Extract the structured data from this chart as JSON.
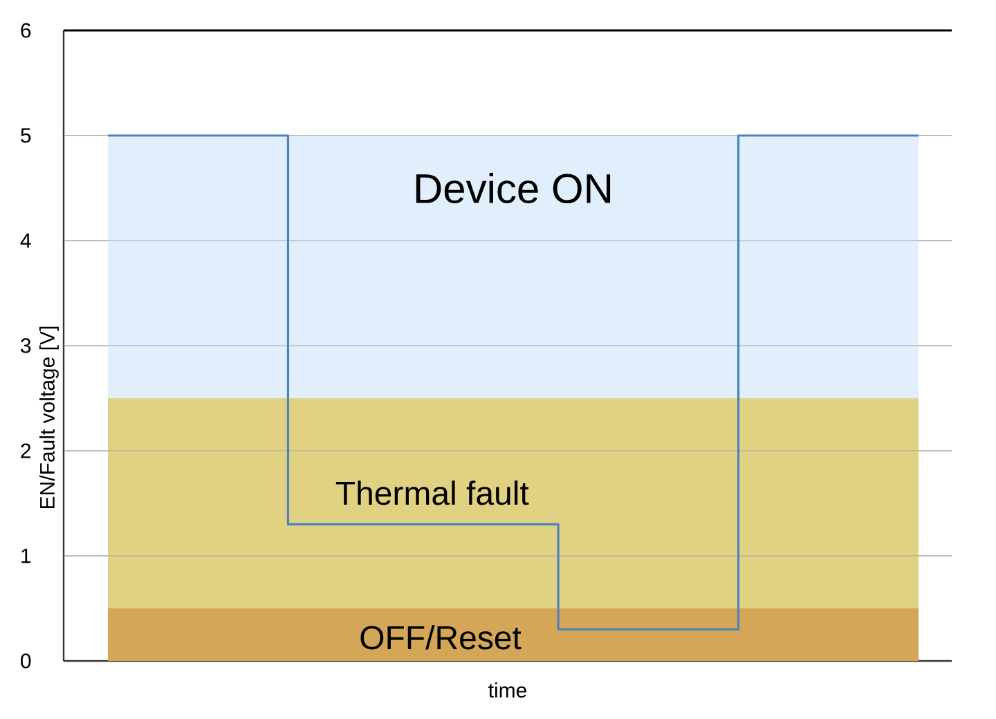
{
  "chart_data": {
    "type": "step",
    "ylabel": "EN/Fault voltage [V]",
    "xlabel": "time",
    "categories": [
      null,
      null,
      null,
      null,
      null,
      null,
      null,
      null,
      null,
      null
    ],
    "series": [
      {
        "color": "#4f81bd",
        "values": [
          5,
          5,
          1.3,
          1.3,
          1.3,
          0.3,
          0.3,
          5,
          5,
          5
        ]
      }
    ],
    "ylim": [
      0,
      6
    ],
    "yticks": [
      0,
      1,
      2,
      3,
      4,
      5,
      6
    ],
    "bands": [
      {
        "axis": "y",
        "from": 2.5,
        "to": 5,
        "label": "Device ON",
        "color": "#e1eefb"
      },
      {
        "axis": "y",
        "from": 0.5,
        "to": 2.5,
        "label": "Thermal fault",
        "color": "#e1d183"
      },
      {
        "axis": "y",
        "from": 0,
        "to": 0.5,
        "label": "OFF/Reset",
        "color": "#d4a657"
      }
    ],
    "grid": "y",
    "tick_labels": "y",
    "marker": "none",
    "line_style": "solid"
  }
}
